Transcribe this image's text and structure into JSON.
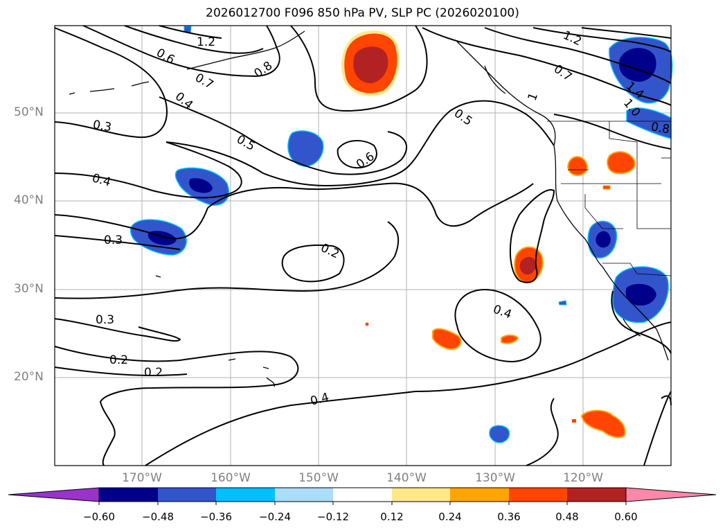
{
  "title": "2026012700 F096 850 hPa PV, SLP PC (2026020100)",
  "lat_labels": [
    "50°N",
    "40°N",
    "30°N",
    "20°N"
  ],
  "lon_labels": [
    "170°W",
    "160°W",
    "150°W",
    "140°W",
    "130°W",
    "120°W"
  ],
  "contour_labels": [
    "1.2",
    "0.6",
    "0.8",
    "0.7",
    "0.4",
    "0.3",
    "0.5",
    "0.6",
    "0.5",
    "1",
    "1.2",
    "0.7",
    "1.4",
    "1.0",
    "0.8",
    "0.4",
    "0.3",
    "0.2",
    "0.4",
    "0.3",
    "0.2",
    "0.2",
    "0.4"
  ],
  "colorbar": {
    "ticks": [
      "−0.60",
      "−0.48",
      "−0.36",
      "−0.24",
      "−0.12",
      "0.12",
      "0.24",
      "0.36",
      "0.48",
      "0.60"
    ],
    "colors": [
      "#9933cc",
      "#00008b",
      "#3355cc",
      "#00bfff",
      "#aaddf7",
      "#ffffff",
      "#ffe88a",
      "#ffa500",
      "#ff4500",
      "#b22222",
      "#ff88aa"
    ]
  },
  "colors": {
    "positive_fill": "#ff4500",
    "positive_core": "#b22222",
    "negative_fill": "#3355cc",
    "negative_core": "#00008b",
    "contour": "#000000",
    "grid": "#b0b0b0"
  }
}
